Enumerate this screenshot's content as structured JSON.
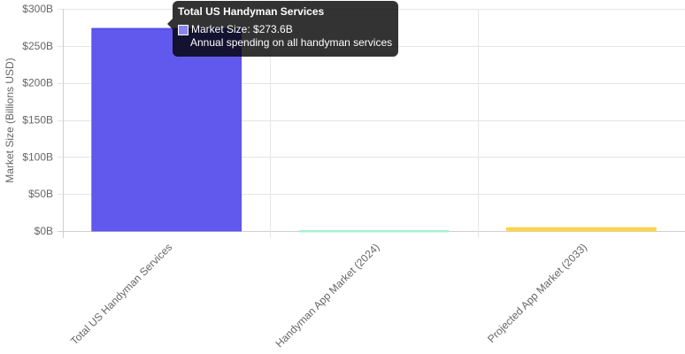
{
  "chart_data": {
    "type": "bar",
    "categories": [
      "Total US Handyman Services",
      "Handyman App Market (2024)",
      "Projected App Market (2033)"
    ],
    "series": [
      {
        "values": [
          273.6,
          0.6,
          4.5
        ],
        "colors": [
          "#5850EC",
          "#A7F3D0",
          "#FCD34D"
        ]
      }
    ],
    "ylabel": "Market Size (Billions USD)",
    "xlabel": "",
    "ylim": [
      0,
      300
    ],
    "y_ticks": [
      0,
      50,
      100,
      150,
      200,
      250,
      300
    ],
    "y_tick_labels": [
      "$0B",
      "$50B",
      "$100B",
      "$150B",
      "$200B",
      "$250B",
      "$300B"
    ],
    "grid": true,
    "x_tick_rotation_deg": -45
  },
  "tooltip": {
    "title": "Total US Handyman Services",
    "value_line": "Market Size: $273.6B",
    "description": "Annual spending on all handyman services",
    "swatch_color": "#8A84F2"
  }
}
